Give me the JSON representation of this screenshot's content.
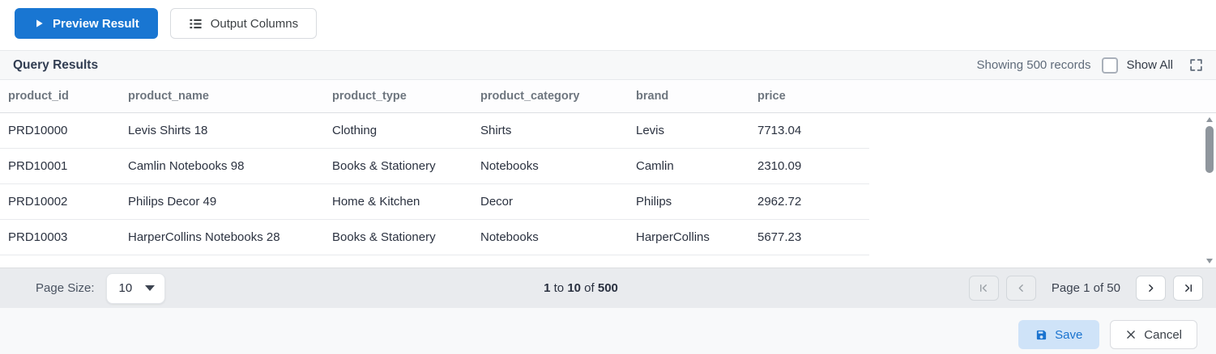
{
  "toolbar": {
    "preview_label": "Preview Result",
    "output_columns_label": "Output Columns"
  },
  "results_header": {
    "title": "Query Results",
    "showing_text": "Showing 500 records",
    "show_all_label": "Show All",
    "show_all_checked": false
  },
  "table": {
    "columns": [
      "product_id",
      "product_name",
      "product_type",
      "product_category",
      "brand",
      "price"
    ],
    "rows": [
      [
        "PRD10000",
        "Levis Shirts 18",
        "Clothing",
        "Shirts",
        "Levis",
        "7713.04"
      ],
      [
        "PRD10001",
        "Camlin Notebooks 98",
        "Books & Stationery",
        "Notebooks",
        "Camlin",
        "2310.09"
      ],
      [
        "PRD10002",
        "Philips Decor 49",
        "Home & Kitchen",
        "Decor",
        "Philips",
        "2962.72"
      ],
      [
        "PRD10003",
        "HarperCollins Notebooks 28",
        "Books & Stationery",
        "Notebooks",
        "HarperCollins",
        "5677.23"
      ]
    ]
  },
  "pagination": {
    "page_size_label": "Page Size:",
    "page_size_value": "10",
    "range": {
      "start": "1",
      "sep1": "to",
      "mid": "10",
      "sep2": "of",
      "total": "500"
    },
    "page_indicator": "Page 1 of 50"
  },
  "actions": {
    "save_label": "Save",
    "cancel_label": "Cancel"
  },
  "colors": {
    "primary_blue": "#1976d2",
    "save_button_bg": "#cfe3f8",
    "save_button_text": "#1a73cf",
    "footer_bg": "#e9ebee"
  }
}
